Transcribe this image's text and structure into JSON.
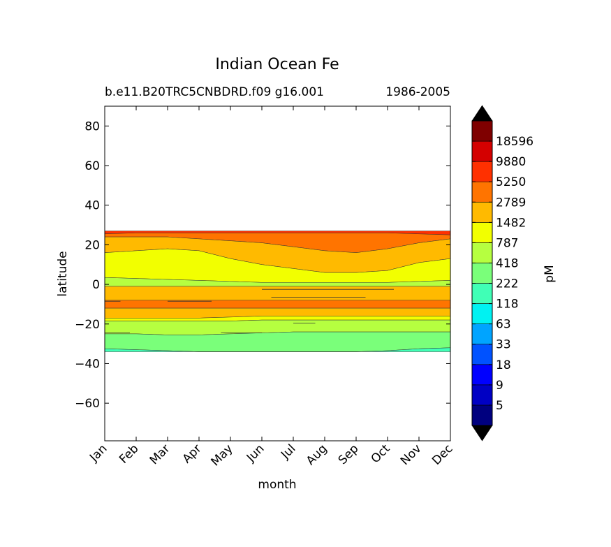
{
  "chart_data": {
    "type": "contourf",
    "title": "Indian Ocean Fe",
    "subtitle_left": "b.e11.B20TRC5CNBDRD.f09 g16.001",
    "subtitle_right": "1986-2005",
    "xlabel": "month",
    "ylabel": "latitude",
    "x_categories": [
      "Jan",
      "Feb",
      "Mar",
      "Apr",
      "May",
      "Jun",
      "Jul",
      "Aug",
      "Sep",
      "Oct",
      "Nov",
      "Dec"
    ],
    "ylim": [
      -79,
      90
    ],
    "yticks": [
      80,
      60,
      40,
      20,
      0,
      -20,
      -40,
      -60
    ],
    "ytick_labels": [
      "80",
      "60",
      "40",
      "20",
      "0",
      "−20",
      "−40",
      "−60"
    ],
    "data_lat_range": [
      -34,
      27
    ],
    "colorbar": {
      "label": "pM",
      "extend": "both",
      "levels": [
        "5",
        "9",
        "18",
        "33",
        "63",
        "118",
        "222",
        "418",
        "787",
        "1482",
        "2789",
        "5250",
        "9880",
        "18596"
      ],
      "colors": [
        "#00007f",
        "#0000c4",
        "#0000ff",
        "#0052ff",
        "#00a4ff",
        "#00f2f2",
        "#40ffb6",
        "#7aff7a",
        "#b6ff40",
        "#f2ff00",
        "#ffba00",
        "#ff7400",
        "#ff3000",
        "#d40000",
        "#7f0000"
      ],
      "under_color": "#000000",
      "over_color": "#000000"
    },
    "bands": [
      {
        "from": [
          27,
          27,
          27,
          27,
          27,
          27,
          27,
          27,
          27,
          27,
          27,
          27
        ],
        "to": [
          25.5,
          26,
          26,
          26,
          26,
          26,
          26,
          26,
          26,
          26,
          25.5,
          25
        ],
        "level": 12
      },
      {
        "from": [
          25.5,
          26,
          26,
          26,
          26,
          26,
          26,
          26,
          26,
          26,
          25.5,
          25
        ],
        "to": [
          24,
          24,
          24,
          23,
          22,
          21,
          19,
          17,
          16,
          18,
          21,
          23
        ],
        "level": 11
      },
      {
        "from": [
          24,
          24,
          24,
          23,
          22,
          21,
          19,
          17,
          16,
          18,
          21,
          23
        ],
        "to": [
          16,
          17,
          18,
          17,
          13,
          10,
          8,
          6,
          6,
          7,
          11,
          13
        ],
        "level": 10
      },
      {
        "from": [
          16,
          17,
          18,
          17,
          13,
          10,
          8,
          6,
          6,
          7,
          11,
          13
        ],
        "to": [
          3.5,
          3,
          2.5,
          2,
          1.5,
          1,
          1,
          1,
          1,
          1,
          1.5,
          2
        ],
        "level": 9
      },
      {
        "from": [
          3.5,
          3,
          2.5,
          2,
          1.5,
          1,
          1,
          1,
          1,
          1,
          1.5,
          2
        ],
        "to": [
          -1,
          -1,
          -1,
          -1,
          -1,
          -1,
          -1,
          -1,
          -1,
          -1,
          -1,
          -1
        ],
        "level": 8
      },
      {
        "from": [
          -1,
          -1,
          -1,
          -1,
          -1,
          -1,
          -1,
          -1,
          -1,
          -1,
          -1,
          -1
        ],
        "to": [
          -8,
          -8,
          -8,
          -8,
          -8,
          -8,
          -8,
          -8,
          -8,
          -8,
          -8,
          -8
        ],
        "level": 10
      },
      {
        "from": [
          -8,
          -8,
          -8,
          -8,
          -8,
          -8,
          -8,
          -8,
          -8,
          -8,
          -8,
          -8
        ],
        "to": [
          -12,
          -12,
          -12,
          -12,
          -12,
          -12,
          -12,
          -12,
          -12,
          -12,
          -12,
          -12
        ],
        "level": 11
      },
      {
        "from": [
          -12,
          -12,
          -12,
          -12,
          -12,
          -12,
          -12,
          -12,
          -12,
          -12,
          -12,
          -12
        ],
        "to": [
          -17,
          -17,
          -17,
          -17,
          -16.5,
          -16,
          -16,
          -16,
          -16,
          -16,
          -16,
          -16
        ],
        "level": 10
      },
      {
        "from": [
          -17,
          -17,
          -17,
          -17,
          -16.5,
          -16,
          -16,
          -16,
          -16,
          -16,
          -16,
          -16
        ],
        "to": [
          -18.5,
          -18.5,
          -18.5,
          -18.5,
          -18.5,
          -18,
          -18,
          -18,
          -18,
          -18,
          -18,
          -18
        ],
        "level": 9
      },
      {
        "from": [
          -18.5,
          -18.5,
          -18.5,
          -18.5,
          -18.5,
          -18,
          -18,
          -18,
          -18,
          -18,
          -18,
          -18
        ],
        "to": [
          -25,
          -25,
          -25.5,
          -25.5,
          -25,
          -24.5,
          -24,
          -24,
          -24,
          -24,
          -24,
          -24
        ],
        "level": 8
      },
      {
        "from": [
          -25,
          -25,
          -25.5,
          -25.5,
          -25,
          -24.5,
          -24,
          -24,
          -24,
          -24,
          -24,
          -24
        ],
        "to": [
          -32.5,
          -33,
          -33.5,
          -34,
          -34,
          -34,
          -34,
          -34,
          -34,
          -33.5,
          -32.5,
          -32
        ],
        "level": 7
      },
      {
        "from": [
          -32.5,
          -33,
          -33.5,
          -34,
          -34,
          -34,
          -34,
          -34,
          -34,
          -33.5,
          -32.5,
          -32
        ],
        "to": [
          -34,
          -34,
          -34,
          -34,
          -34,
          -34,
          -34,
          -34,
          -34,
          -34,
          -34,
          -34
        ],
        "level": 6
      }
    ],
    "contour_marks": [
      {
        "month": [
          0,
          0.5
        ],
        "lat": -8.5
      },
      {
        "month": [
          2,
          3.4
        ],
        "lat": -8.5
      },
      {
        "month": [
          5,
          9.2
        ],
        "lat": -2.5
      },
      {
        "month": [
          5.3,
          8.3
        ],
        "lat": -6.5
      },
      {
        "month": [
          0,
          0.8
        ],
        "lat": -24.5
      },
      {
        "month": [
          3.7,
          5
        ],
        "lat": -24.5
      },
      {
        "month": [
          6,
          6.7
        ],
        "lat": -19.5
      }
    ]
  }
}
